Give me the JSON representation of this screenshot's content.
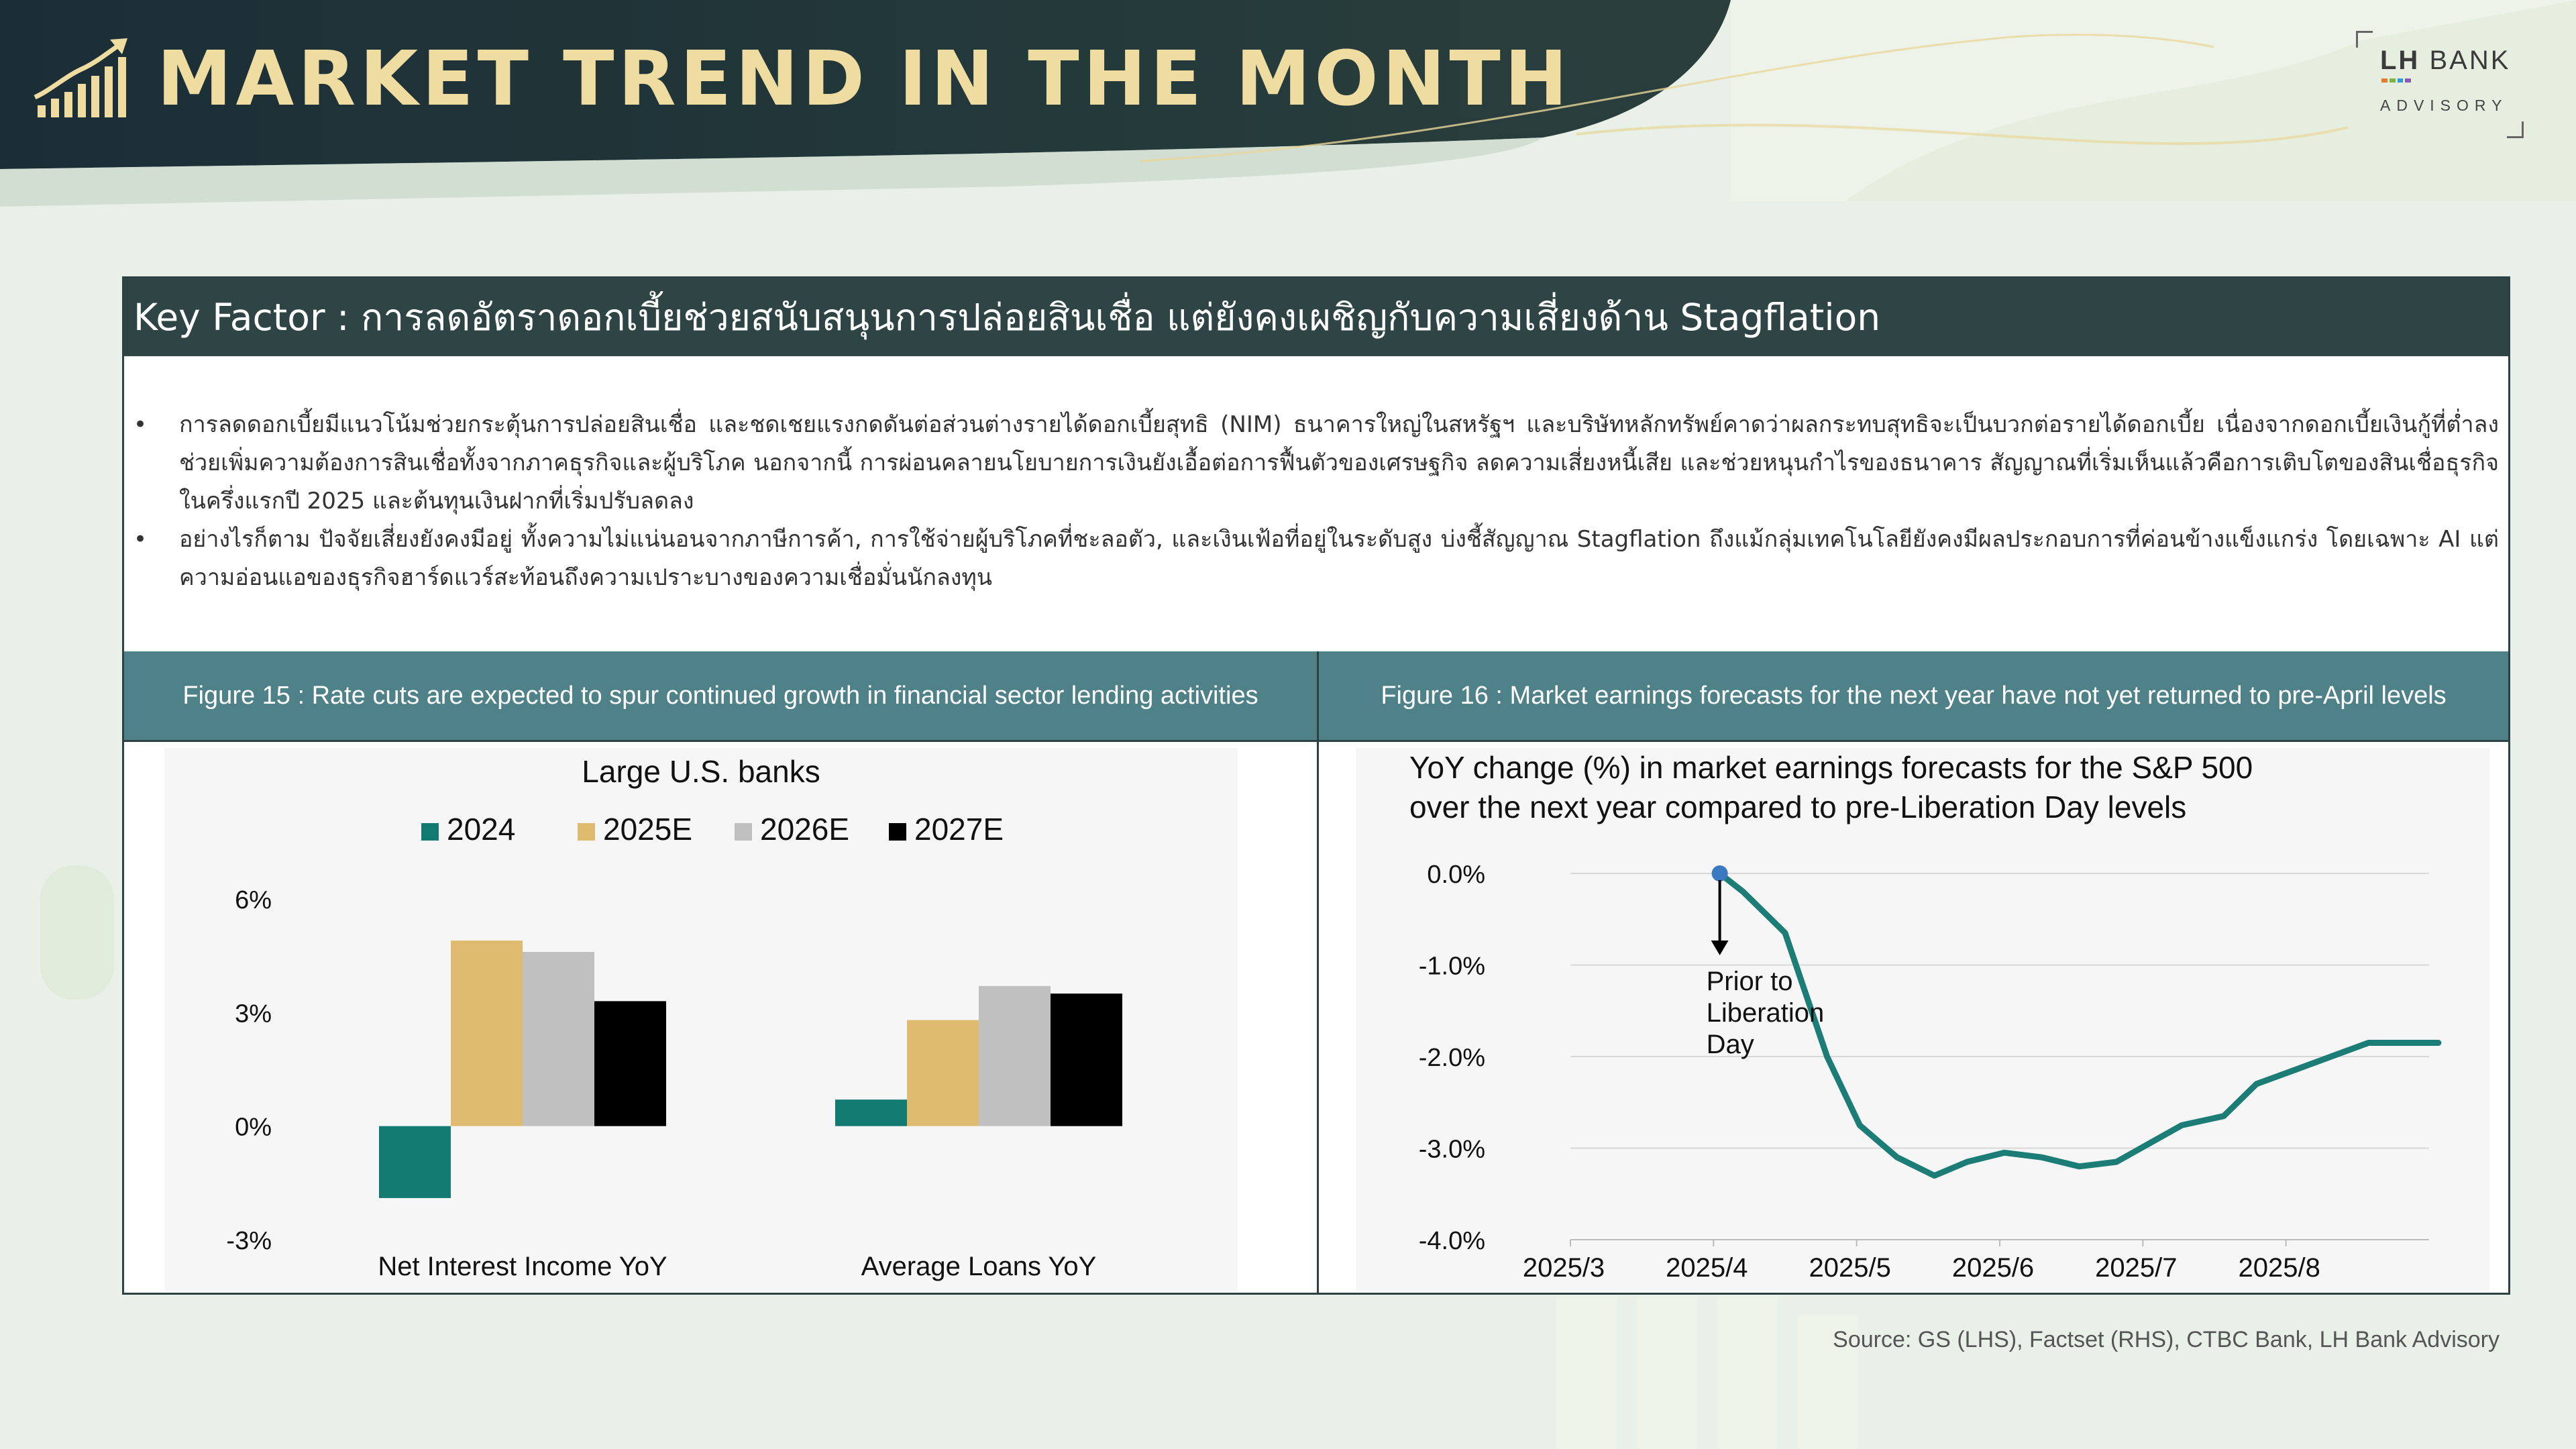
{
  "header": {
    "title": "MARKET TREND IN THE MONTH",
    "brand_lh": "LH",
    "brand_bank": "BANK",
    "brand_sub": "ADVISORY"
  },
  "key_factor": {
    "title": "Key Factor : การลดอัตราดอกเบี้ยช่วยสนับสนุนการปล่อยสินเชื่อ แต่ยังคงเผชิญกับความเสี่ยงด้าน Stagflation",
    "bullets": [
      "การลดดอกเบี้ยมีแนวโน้มช่วยกระตุ้นการปล่อยสินเชื่อ และชดเชยแรงกดดันต่อส่วนต่างรายได้ดอกเบี้ยสุทธิ (NIM) ธนาคารใหญ่ในสหรัฐฯ และบริษัทหลักทรัพย์คาดว่าผลกระทบสุทธิจะเป็นบวกต่อรายได้ดอกเบี้ย เนื่องจากดอกเบี้ยเงินกู้ที่ต่ำลงช่วยเพิ่มความต้องการสินเชื่อทั้งจากภาคธุรกิจและผู้บริโภค นอกจากนี้ การผ่อนคลายนโยบายการเงินยังเอื้อต่อการฟื้นตัวของเศรษฐกิจ ลดความเสี่ยงหนี้เสีย และช่วยหนุนกำไรของธนาคาร สัญญาณที่เริ่มเห็นแล้วคือการเติบโตของสินเชื่อธุรกิจในครึ่งแรกปี 2025 และต้นทุนเงินฝากที่เริ่มปรับลดลง",
      "อย่างไรก็ตาม ปัจจัยเสี่ยงยังคงมีอยู่ ทั้งความไม่แน่นอนจากภาษีการค้า, การใช้จ่ายผู้บริโภคที่ชะลอตัว, และเงินเฟ้อที่อยู่ในระดับสูง บ่งชี้สัญญาณ Stagflation ถึงแม้กลุ่มเทคโนโลยียังคงมีผลประกอบการที่ค่อนข้างแข็งแกร่ง โดยเฉพาะ AI แต่ความอ่อนแอของธุรกิจฮาร์ดแวร์สะท้อนถึงความเปราะบางของความเชื่อมั่นนักลงทุน"
    ]
  },
  "figures": {
    "fig15_caption": "Figure 15 : Rate cuts are expected to spur continued growth in financial sector lending activities",
    "fig16_caption": "Figure 16 : Market earnings forecasts for the next year have not yet returned to pre-April levels"
  },
  "colors": {
    "teal": "#137a72",
    "gold": "#debb6e",
    "gray": "#c0c0c0",
    "black": "#000000",
    "line": "#1b7d75",
    "header_dark": "#1e3436",
    "fig_header": "#4e8188"
  },
  "chart_data": [
    {
      "type": "bar",
      "title": "Large U.S. banks",
      "categories": [
        "Net Interest Income YoY",
        "Average Loans YoY"
      ],
      "series": [
        {
          "name": "2024",
          "color": "#137a72",
          "values": [
            -1.9,
            0.7
          ]
        },
        {
          "name": "2025E",
          "color": "#debb6e",
          "values": [
            4.9,
            2.8
          ]
        },
        {
          "name": "2026E",
          "color": "#c0c0c0",
          "values": [
            4.6,
            3.7
          ]
        },
        {
          "name": "2027E",
          "color": "#000000",
          "values": [
            3.3,
            3.5
          ]
        }
      ],
      "yticks": [
        "6%",
        "3%",
        "0%",
        "-3%"
      ],
      "ytick_values": [
        6,
        3,
        0,
        -3
      ],
      "ylim": [
        -3,
        6
      ],
      "legend": "top"
    },
    {
      "type": "line",
      "title": "YoY change (%) in market earnings forecasts for the S&P 500 over the next year compared to pre-Liberation Day levels",
      "x_ticks": [
        "2025/3",
        "2025/4",
        "2025/5",
        "2025/6",
        "2025/7",
        "2025/8"
      ],
      "yticks": [
        "0.0%",
        "-1.0%",
        "-2.0%",
        "-3.0%",
        "-4.0%"
      ],
      "ytick_values": [
        0,
        -1,
        -2,
        -3,
        -4
      ],
      "ylim": [
        -4,
        0
      ],
      "series": [
        {
          "name": "",
          "color": "#1b7d75",
          "x": [
            "2025-04-02",
            "2025-04-07",
            "2025-04-16",
            "2025-04-25",
            "2025-05-02",
            "2025-05-10",
            "2025-05-18",
            "2025-05-25",
            "2025-06-02",
            "2025-06-10",
            "2025-06-18",
            "2025-06-26",
            "2025-07-03",
            "2025-07-10",
            "2025-07-19",
            "2025-07-26",
            "2025-08-03",
            "2025-08-11",
            "2025-08-19",
            "2025-08-27",
            "2025-09-03"
          ],
          "y": [
            0.0,
            -0.2,
            -0.65,
            -2.0,
            -2.75,
            -3.1,
            -3.3,
            -3.15,
            -3.05,
            -3.1,
            -3.2,
            -3.15,
            -2.95,
            -2.75,
            -2.65,
            -2.3,
            -2.15,
            -2.0,
            -1.85,
            -1.85,
            -1.85
          ]
        }
      ],
      "annotation": {
        "text": [
          "Prior to",
          "Liberation",
          "Day"
        ],
        "x": "2025-04-02",
        "y": 0.0
      }
    }
  ],
  "source": "Source: GS (LHS), Factset (RHS), CTBC Bank, LH Bank Advisory"
}
